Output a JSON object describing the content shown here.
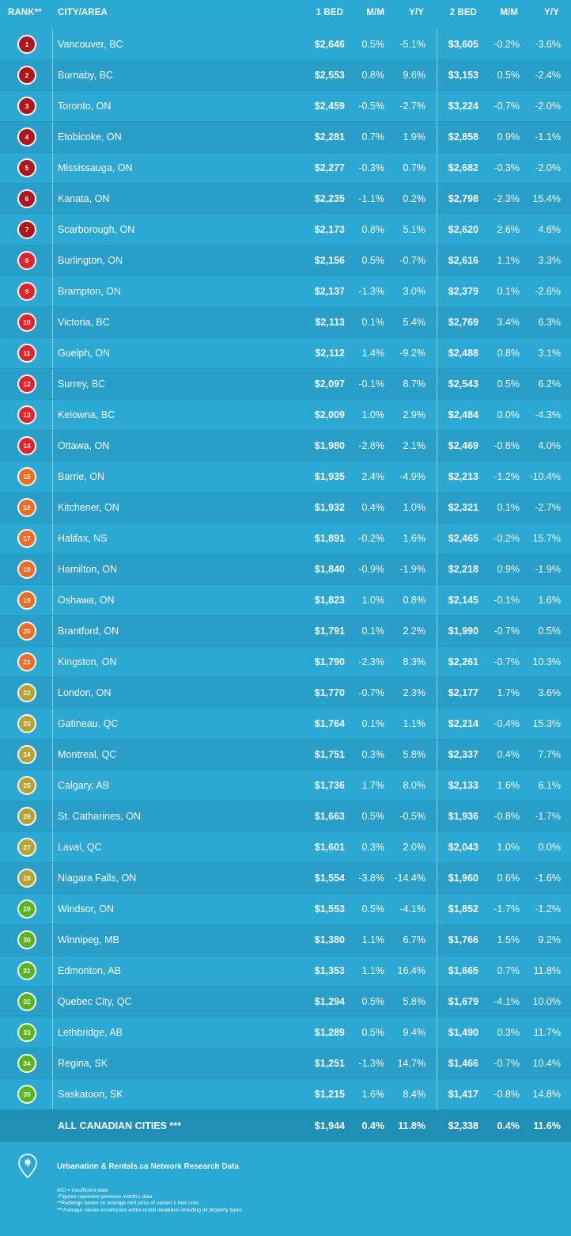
{
  "header": {
    "rank": "RANK**",
    "city": "CITY/AREA",
    "one_bed": "1 BED",
    "mm1": "M/M",
    "yy1": "Y/Y",
    "two_bed": "2 BED",
    "mm2": "M/M",
    "yy2": "Y/Y"
  },
  "rows": [
    {
      "rank": "1",
      "city": "Vancouver, BC",
      "one_bed": "$2,646",
      "mm1": "0.5%",
      "yy1": "-5.1%",
      "two_bed": "$3,605",
      "mm2": "-0.2%",
      "yy2": "-3.6%",
      "color": "#b5131b"
    },
    {
      "rank": "2",
      "city": "Burnaby, BC",
      "one_bed": "$2,553",
      "mm1": "0.8%",
      "yy1": "9.6%",
      "two_bed": "$3,153",
      "mm2": "0.5%",
      "yy2": "-2.4%",
      "color": "#b5131b"
    },
    {
      "rank": "3",
      "city": "Toronto, ON",
      "one_bed": "$2,459",
      "mm1": "-0.5%",
      "yy1": "-2.7%",
      "two_bed": "$3,224",
      "mm2": "-0.7%",
      "yy2": "-2.0%",
      "color": "#b5131b"
    },
    {
      "rank": "4",
      "city": "Etobicoke, ON",
      "one_bed": "$2,281",
      "mm1": "0.7%",
      "yy1": "1.9%",
      "two_bed": "$2,858",
      "mm2": "0.9%",
      "yy2": "-1.1%",
      "color": "#b5131b"
    },
    {
      "rank": "5",
      "city": "Mississauga, ON",
      "one_bed": "$2,277",
      "mm1": "-0.3%",
      "yy1": "0.7%",
      "two_bed": "$2,682",
      "mm2": "-0.3%",
      "yy2": "-2.0%",
      "color": "#b5131b"
    },
    {
      "rank": "6",
      "city": "Kanata, ON",
      "one_bed": "$2,235",
      "mm1": "-1.1%",
      "yy1": "0.2%",
      "two_bed": "$2,798",
      "mm2": "-2.3%",
      "yy2": "15.4%",
      "color": "#b5131b"
    },
    {
      "rank": "7",
      "city": "Scarborough, ON",
      "one_bed": "$2,173",
      "mm1": "0.8%",
      "yy1": "5.1%",
      "two_bed": "$2,620",
      "mm2": "2.6%",
      "yy2": "4.6%",
      "color": "#b5131b"
    },
    {
      "rank": "8",
      "city": "Burlington, ON",
      "one_bed": "$2,156",
      "mm1": "0.5%",
      "yy1": "-0.7%",
      "two_bed": "$2,616",
      "mm2": "1.1%",
      "yy2": "3.3%",
      "color": "#e8222a"
    },
    {
      "rank": "9",
      "city": "Brampton, ON",
      "one_bed": "$2,137",
      "mm1": "-1.3%",
      "yy1": "3.0%",
      "two_bed": "$2,379",
      "mm2": "0.1%",
      "yy2": "-2.6%",
      "color": "#e8222a"
    },
    {
      "rank": "10",
      "city": "Victoria, BC",
      "one_bed": "$2,113",
      "mm1": "0.1%",
      "yy1": "5.4%",
      "two_bed": "$2,769",
      "mm2": "3.4%",
      "yy2": "6.3%",
      "color": "#e8222a"
    },
    {
      "rank": "11",
      "city": "Guelph, ON",
      "one_bed": "$2,112",
      "mm1": "1.4%",
      "yy1": "-9.2%",
      "two_bed": "$2,488",
      "mm2": "0.8%",
      "yy2": "3.1%",
      "color": "#e8222a"
    },
    {
      "rank": "12",
      "city": "Surrey, BC",
      "one_bed": "$2,097",
      "mm1": "-0.1%",
      "yy1": "8.7%",
      "two_bed": "$2,543",
      "mm2": "0.5%",
      "yy2": "6.2%",
      "color": "#e8222a"
    },
    {
      "rank": "13",
      "city": "Kelowna, BC",
      "one_bed": "$2,009",
      "mm1": "1.0%",
      "yy1": "2.9%",
      "two_bed": "$2,484",
      "mm2": "0.0%",
      "yy2": "-4.3%",
      "color": "#e8222a"
    },
    {
      "rank": "14",
      "city": "Ottawa, ON",
      "one_bed": "$1,980",
      "mm1": "-2.8%",
      "yy1": "2.1%",
      "two_bed": "$2,469",
      "mm2": "-0.8%",
      "yy2": "4.0%",
      "color": "#e8222a"
    },
    {
      "rank": "15",
      "city": "Barrie, ON",
      "one_bed": "$1,935",
      "mm1": "2.4%",
      "yy1": "-4.9%",
      "two_bed": "$2,213",
      "mm2": "-1.2%",
      "yy2": "-10.4%",
      "color": "#f26b21"
    },
    {
      "rank": "16",
      "city": "Kitchener, ON",
      "one_bed": "$1,932",
      "mm1": "0.4%",
      "yy1": "1.0%",
      "two_bed": "$2,321",
      "mm2": "0.1%",
      "yy2": "-2.7%",
      "color": "#f26b21"
    },
    {
      "rank": "17",
      "city": "Halifax, NS",
      "one_bed": "$1,891",
      "mm1": "-0.2%",
      "yy1": "1.6%",
      "two_bed": "$2,465",
      "mm2": "-0.2%",
      "yy2": "15.7%",
      "color": "#f26b21"
    },
    {
      "rank": "18",
      "city": "Hamilton, ON",
      "one_bed": "$1,840",
      "mm1": "-0.9%",
      "yy1": "-1.9%",
      "two_bed": "$2,218",
      "mm2": "0.9%",
      "yy2": "-1.9%",
      "color": "#f26b21"
    },
    {
      "rank": "19",
      "city": "Oshawa, ON",
      "one_bed": "$1,823",
      "mm1": "1.0%",
      "yy1": "0.8%",
      "two_bed": "$2,145",
      "mm2": "-0.1%",
      "yy2": "1.6%",
      "color": "#f26b21"
    },
    {
      "rank": "20",
      "city": "Brantford, ON",
      "one_bed": "$1,791",
      "mm1": "0.1%",
      "yy1": "2.2%",
      "two_bed": "$1,990",
      "mm2": "-0.7%",
      "yy2": "0.5%",
      "color": "#f26b21"
    },
    {
      "rank": "21",
      "city": "Kingston, ON",
      "one_bed": "$1,790",
      "mm1": "-2.3%",
      "yy1": "8.3%",
      "two_bed": "$2,261",
      "mm2": "-0.7%",
      "yy2": "10.3%",
      "color": "#f26b21"
    },
    {
      "rank": "22",
      "city": "London, ON",
      "one_bed": "$1,770",
      "mm1": "-0.7%",
      "yy1": "2.3%",
      "two_bed": "$2,177",
      "mm2": "1.7%",
      "yy2": "3.6%",
      "color": "#b9a232"
    },
    {
      "rank": "23",
      "city": "Gatineau, QC",
      "one_bed": "$1,764",
      "mm1": "0.1%",
      "yy1": "1.1%",
      "two_bed": "$2,214",
      "mm2": "-0.4%",
      "yy2": "15.3%",
      "color": "#b9a232"
    },
    {
      "rank": "24",
      "city": "Montreal, QC",
      "one_bed": "$1,751",
      "mm1": "0.3%",
      "yy1": "5.8%",
      "two_bed": "$2,337",
      "mm2": "0.4%",
      "yy2": "7.7%",
      "color": "#b9a232"
    },
    {
      "rank": "25",
      "city": "Calgary, AB",
      "one_bed": "$1,736",
      "mm1": "1.7%",
      "yy1": "8.0%",
      "two_bed": "$2,133",
      "mm2": "1.6%",
      "yy2": "6.1%",
      "color": "#b9a232"
    },
    {
      "rank": "26",
      "city": "St. Catharines, ON",
      "one_bed": "$1,663",
      "mm1": "0.5%",
      "yy1": "-0.5%",
      "two_bed": "$1,936",
      "mm2": "-0.8%",
      "yy2": "-1.7%",
      "color": "#b9a232"
    },
    {
      "rank": "27",
      "city": "Laval, QC",
      "one_bed": "$1,601",
      "mm1": "0.3%",
      "yy1": "2.0%",
      "two_bed": "$2,043",
      "mm2": "1.0%",
      "yy2": "0.0%",
      "color": "#b9a232"
    },
    {
      "rank": "28",
      "city": "Niagara Falls, ON",
      "one_bed": "$1,554",
      "mm1": "-3.8%",
      "yy1": "-14.4%",
      "two_bed": "$1,960",
      "mm2": "0.6%",
      "yy2": "-1.6%",
      "color": "#b9a232"
    },
    {
      "rank": "29",
      "city": "Windsor, ON",
      "one_bed": "$1,553",
      "mm1": "0.5%",
      "yy1": "-4.1%",
      "two_bed": "$1,852",
      "mm2": "-1.7%",
      "yy2": "-1.2%",
      "color": "#59b51a"
    },
    {
      "rank": "30",
      "city": "Winnipeg, MB",
      "one_bed": "$1,380",
      "mm1": "1.1%",
      "yy1": "6.7%",
      "two_bed": "$1,766",
      "mm2": "1.5%",
      "yy2": "9.2%",
      "color": "#59b51a"
    },
    {
      "rank": "31",
      "city": "Edmonton, AB",
      "one_bed": "$1,353",
      "mm1": "1.1%",
      "yy1": "16.4%",
      "two_bed": "$1,665",
      "mm2": "0.7%",
      "yy2": "11.8%",
      "color": "#59b51a"
    },
    {
      "rank": "32",
      "city": "Quebec City, QC",
      "one_bed": "$1,294",
      "mm1": "0.5%",
      "yy1": "5.8%",
      "two_bed": "$1,679",
      "mm2": "-4.1%",
      "yy2": "10.0%",
      "color": "#59b51a"
    },
    {
      "rank": "33",
      "city": "Lethbridge, AB",
      "one_bed": "$1,289",
      "mm1": "0.5%",
      "yy1": "9.4%",
      "two_bed": "$1,490",
      "mm2": "0.3%",
      "yy2": "11.7%",
      "color": "#59b51a"
    },
    {
      "rank": "34",
      "city": "Regina, SK",
      "one_bed": "$1,251",
      "mm1": "-1.3%",
      "yy1": "14.7%",
      "two_bed": "$1,466",
      "mm2": "-0.7%",
      "yy2": "10.4%",
      "color": "#59b51a"
    },
    {
      "rank": "35",
      "city": "Saskatoon, SK",
      "one_bed": "$1,215",
      "mm1": "1.6%",
      "yy1": "8.4%",
      "two_bed": "$1,417",
      "mm2": "-0.8%",
      "yy2": "14.8%",
      "color": "#59b51a"
    }
  ],
  "total": {
    "city": "ALL CANADIAN CITIES ***",
    "one_bed": "$1,944",
    "mm1": "0.4%",
    "yy1": "11.8%",
    "two_bed": "$2,338",
    "mm2": "0.4%",
    "yy2": "11.6%"
  },
  "footer": {
    "logo_icon": "map-pin-maple-leaf-icon",
    "source": "Urbanation & Rentals.ca Network Research Data",
    "notes": [
      "N/D = insufficient data",
      "*Figures represent previous month's data",
      "**Rankings based on average rent price of vacant 1-bed units",
      "***Average values encompass entire rental database including all property types"
    ]
  }
}
